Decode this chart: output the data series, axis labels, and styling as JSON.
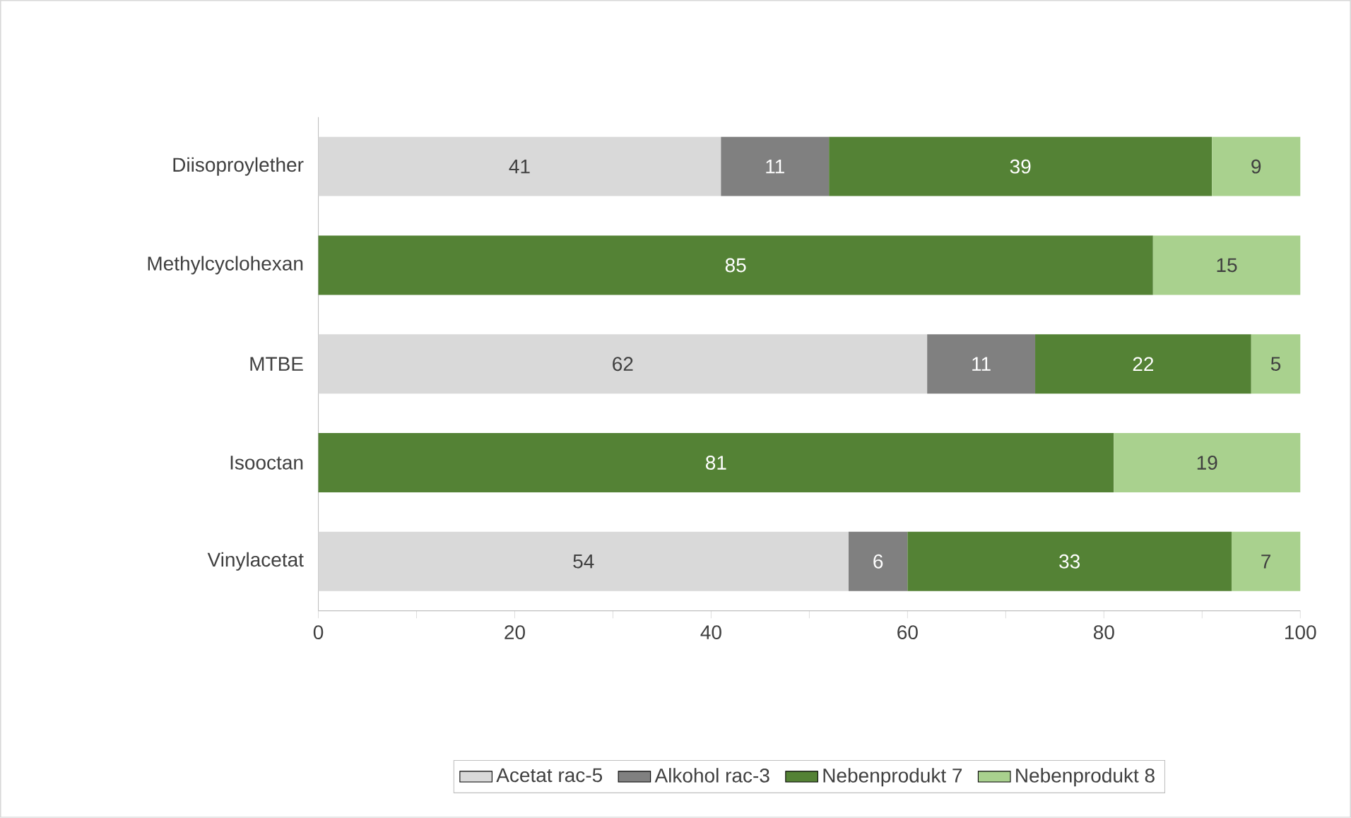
{
  "chart_data": {
    "type": "bar",
    "orientation": "horizontal",
    "stacked": true,
    "categories": [
      "Diisoproylether",
      "Methylcyclohexan",
      "MTBE",
      "Isooctan",
      "Vinylacetat"
    ],
    "series": [
      {
        "name": "Acetat rac-5",
        "color": "#d9d9d9",
        "values": [
          41,
          null,
          62,
          null,
          54
        ]
      },
      {
        "name": "Alkohol rac-3",
        "color": "#808080",
        "values": [
          11,
          null,
          11,
          null,
          6
        ]
      },
      {
        "name": "Nebenprodukt 7",
        "color": "#548235",
        "values": [
          39,
          85,
          22,
          81,
          33
        ]
      },
      {
        "name": "Nebenprodukt 8",
        "color": "#a9d18e",
        "values": [
          9,
          15,
          5,
          19,
          7
        ]
      }
    ],
    "xlim": [
      0,
      100
    ],
    "xticks": [
      0,
      20,
      40,
      60,
      80,
      100
    ],
    "data_labels": true,
    "legend": "bottom"
  }
}
